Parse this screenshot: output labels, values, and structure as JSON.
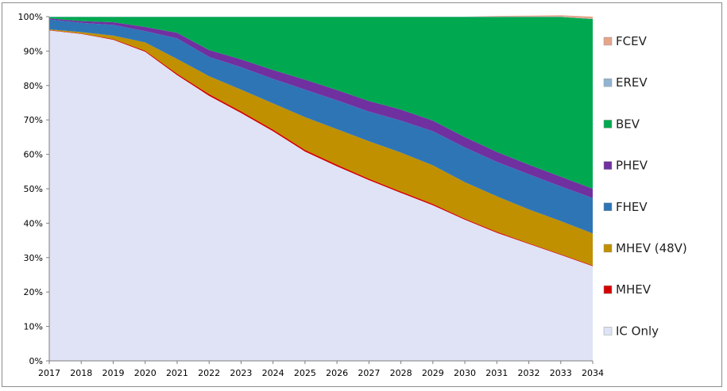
{
  "chart_data": {
    "type": "area",
    "stacked": true,
    "y_unit": "percent",
    "x": [
      2017,
      2018,
      2019,
      2020,
      2021,
      2022,
      2023,
      2024,
      2025,
      2026,
      2027,
      2028,
      2029,
      2030,
      2031,
      2032,
      2033,
      2034
    ],
    "x_tick_labels": [
      "2017",
      "2018",
      "2019",
      "2020",
      "2021",
      "2022",
      "2023",
      "2024",
      "2025",
      "2026",
      "2027",
      "2028",
      "2029",
      "2030",
      "2031",
      "2032",
      "2033",
      "2034"
    ],
    "y_tick_labels": [
      "0%",
      "10%",
      "20%",
      "30%",
      "40%",
      "50%",
      "60%",
      "70%",
      "80%",
      "90%",
      "100%"
    ],
    "ylim": [
      0,
      100
    ],
    "legend_position": "right",
    "series": [
      {
        "name": "IC Only",
        "color": "#dfe3f5",
        "values": [
          96.0,
          95.0,
          93.3,
          89.8,
          83.0,
          77.0,
          72.0,
          66.7,
          60.8,
          56.5,
          52.5,
          48.8,
          45.2,
          41.0,
          37.2,
          34.0,
          30.8,
          27.5
        ]
      },
      {
        "name": "MHEV",
        "color": "#d40000",
        "values": [
          0.1,
          0.1,
          0.2,
          0.3,
          0.4,
          0.5,
          0.5,
          0.5,
          0.5,
          0.5,
          0.4,
          0.4,
          0.4,
          0.3,
          0.3,
          0.2,
          0.2,
          0.2
        ]
      },
      {
        "name": "MHEV (48V)",
        "color": "#c09000",
        "values": [
          0.2,
          0.4,
          1.0,
          2.4,
          4.3,
          5.2,
          6.3,
          7.6,
          9.5,
          10.3,
          10.9,
          11.3,
          11.2,
          10.6,
          10.3,
          9.8,
          9.6,
          9.3
        ]
      },
      {
        "name": "FHEV",
        "color": "#2e75b6",
        "values": [
          2.9,
          2.7,
          3.1,
          3.3,
          6.0,
          5.6,
          6.5,
          7.1,
          8.0,
          8.4,
          8.6,
          9.3,
          9.9,
          10.1,
          10.0,
          10.2,
          10.1,
          10.3
        ]
      },
      {
        "name": "PHEV",
        "color": "#7030a0",
        "values": [
          0.3,
          0.5,
          0.8,
          1.2,
          1.6,
          2.0,
          2.3,
          2.6,
          2.9,
          3.0,
          3.1,
          3.2,
          3.1,
          3.0,
          2.9,
          2.8,
          2.8,
          2.7
        ]
      },
      {
        "name": "BEV",
        "color": "#00a94f",
        "values": [
          0.4,
          1.2,
          1.5,
          2.9,
          4.6,
          9.6,
          12.3,
          15.4,
          18.2,
          21.2,
          24.4,
          26.9,
          30.1,
          34.9,
          39.2,
          42.9,
          46.4,
          49.3
        ]
      },
      {
        "name": "EREV",
        "color": "#92b4d2",
        "values": [
          0.1,
          0.1,
          0.1,
          0.1,
          0.1,
          0.1,
          0.1,
          0.1,
          0.1,
          0.1,
          0.1,
          0.1,
          0.1,
          0.1,
          0.1,
          0.1,
          0.1,
          0.1
        ]
      },
      {
        "name": "FCEV",
        "color": "#e4a58a",
        "values": [
          0.0,
          0.0,
          0.0,
          0.0,
          0.0,
          0.0,
          0.0,
          0.0,
          0.0,
          0.0,
          0.0,
          0.0,
          0.0,
          0.0,
          0.2,
          0.3,
          0.4,
          0.6
        ]
      }
    ],
    "legend_order": [
      "FCEV",
      "EREV",
      "BEV",
      "PHEV",
      "FHEV",
      "MHEV (48V)",
      "MHEV",
      "IC Only"
    ]
  }
}
